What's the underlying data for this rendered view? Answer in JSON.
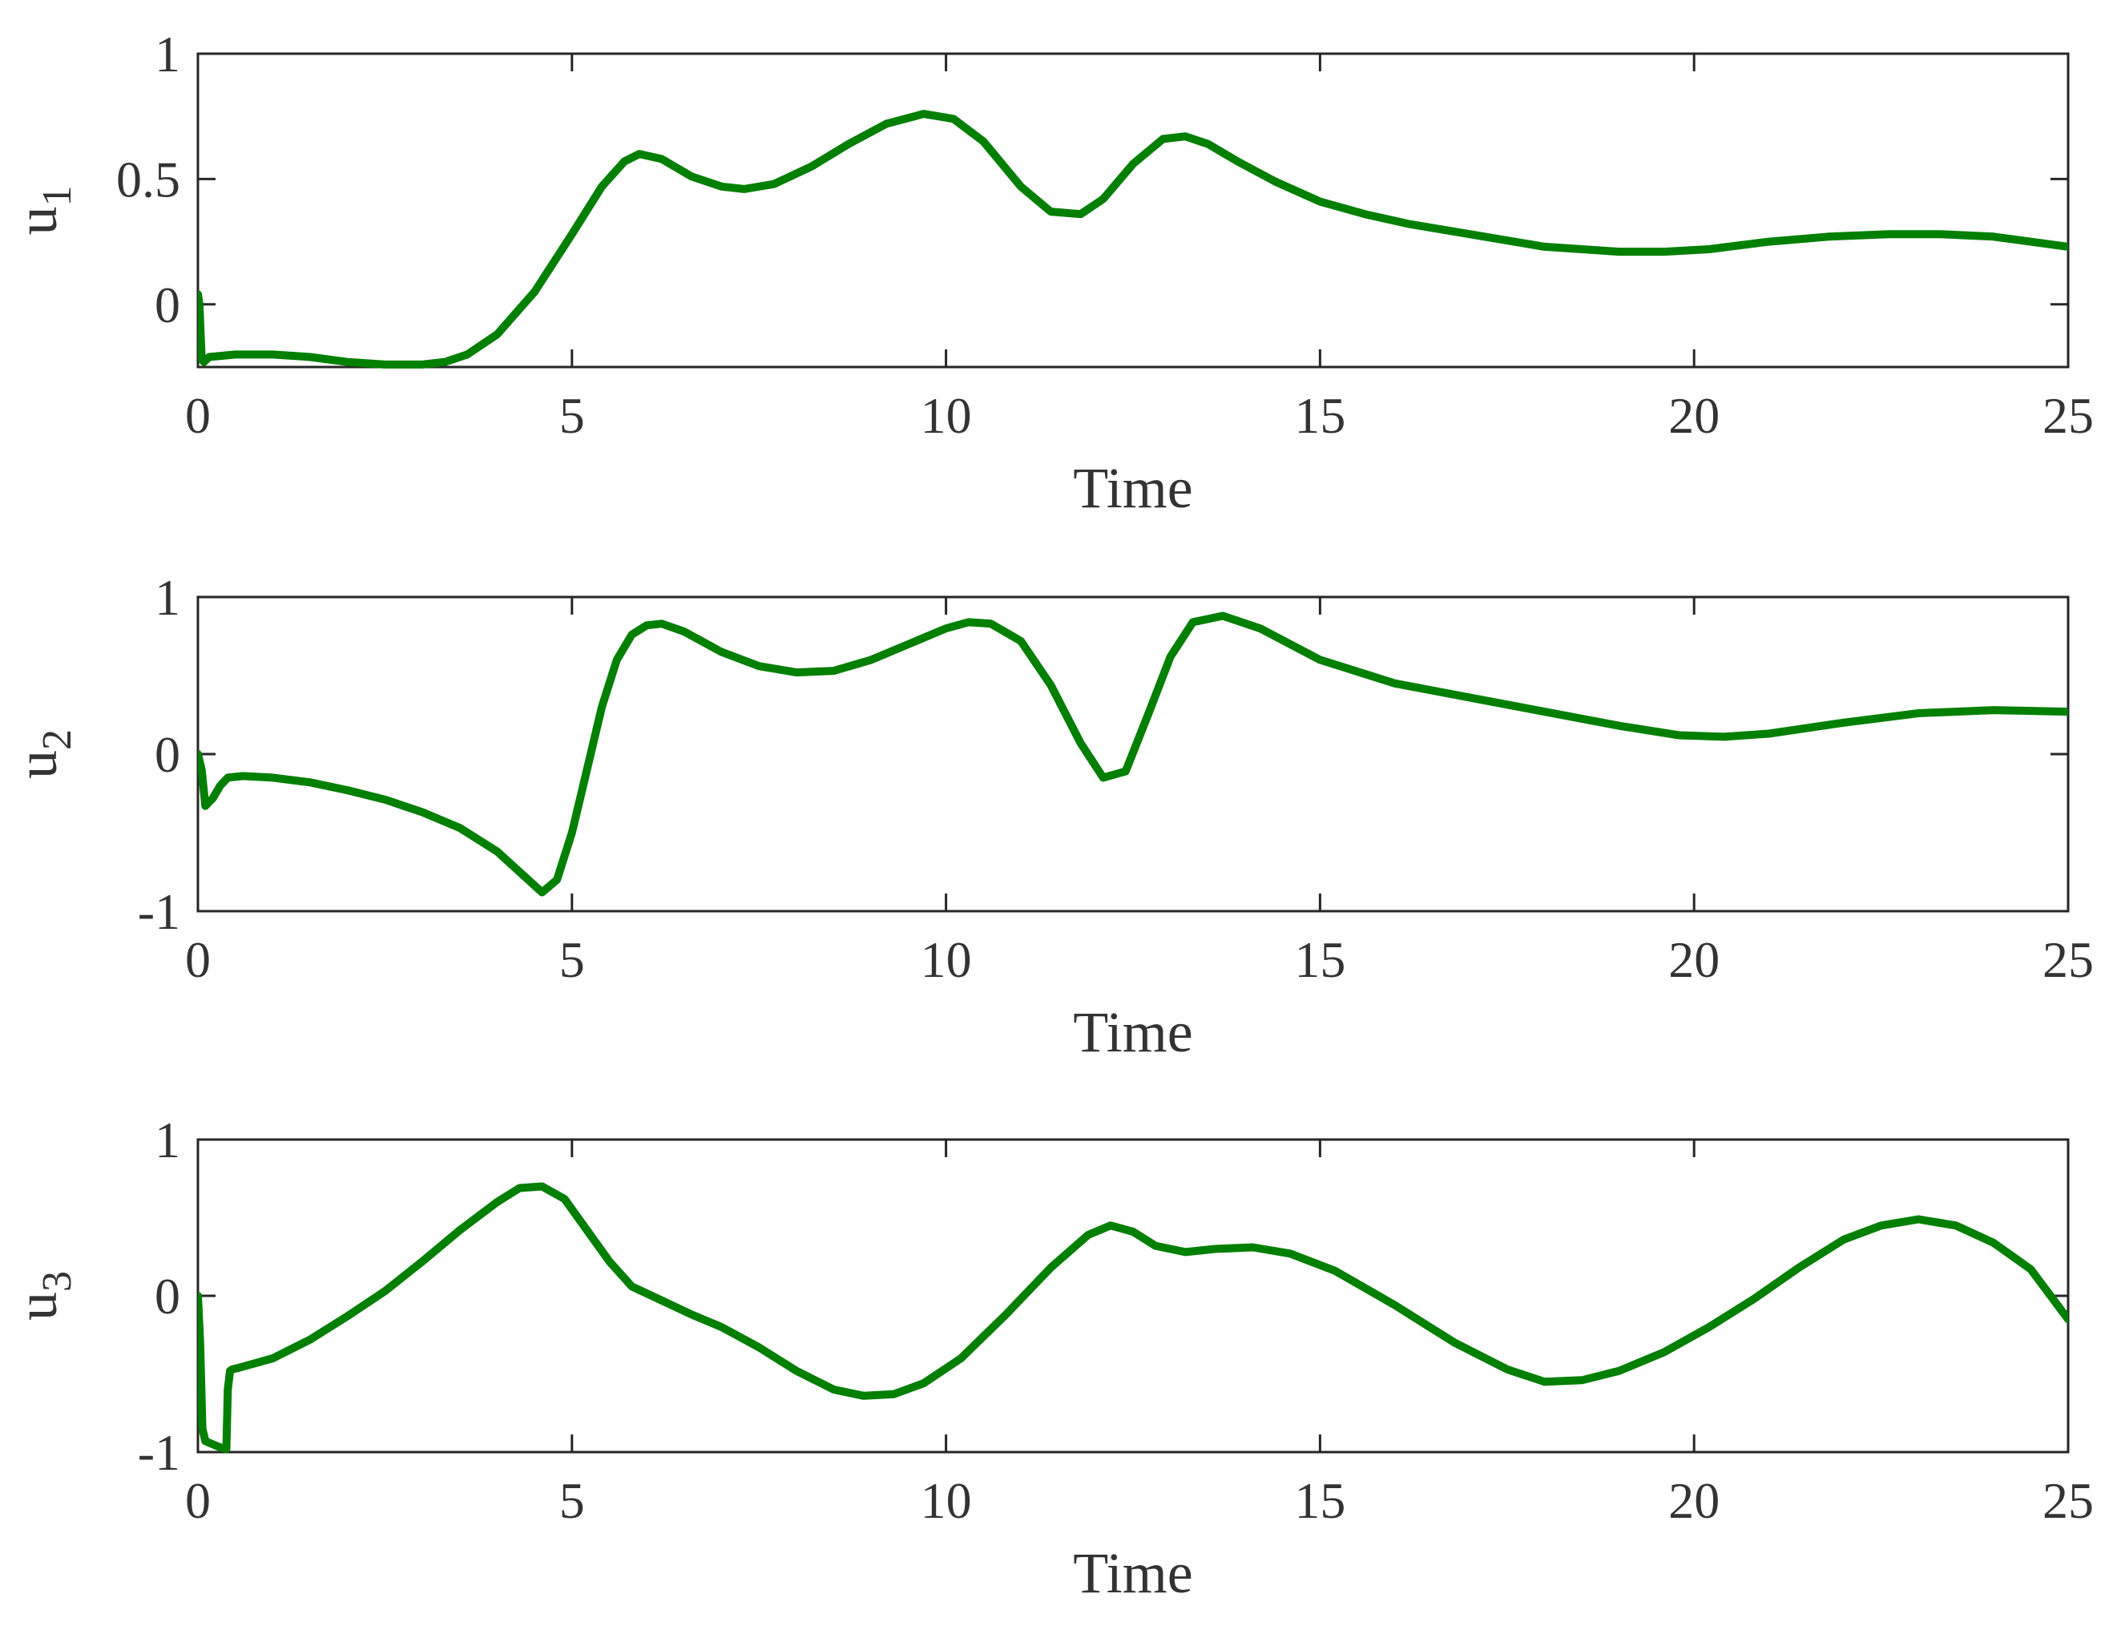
{
  "chart_data": [
    {
      "type": "line",
      "xlabel": "Time",
      "ylabel": {
        "main": "u",
        "sub": "1"
      },
      "xlim": [
        0,
        25
      ],
      "ylim": [
        -0.25,
        1
      ],
      "xticks": [
        0,
        5,
        10,
        15,
        20,
        25
      ],
      "xtick_labels": [
        "0",
        "5",
        "10",
        "15",
        "20",
        "25"
      ],
      "yticks": [
        0,
        0.5,
        1
      ],
      "ytick_labels": [
        "0",
        "0.5",
        "1"
      ],
      "grid": false,
      "series": [
        {
          "color": "#007f00",
          "x": [
            0,
            0.02,
            0.05,
            0.08,
            0.15,
            0.5,
            1.0,
            1.5,
            2.0,
            2.5,
            3.0,
            3.3,
            3.6,
            4.0,
            4.5,
            5.0,
            5.4,
            5.7,
            5.9,
            6.2,
            6.6,
            7.0,
            7.3,
            7.7,
            8.2,
            8.7,
            9.2,
            9.7,
            10.1,
            10.5,
            11.0,
            11.4,
            11.8,
            12.1,
            12.5,
            12.9,
            13.2,
            13.5,
            13.9,
            14.4,
            15.0,
            15.6,
            16.2,
            17.0,
            18.0,
            19.0,
            19.6,
            20.2,
            21.0,
            21.8,
            22.6,
            23.3,
            24.0,
            24.5,
            25.0
          ],
          "y": [
            0.04,
            0.0,
            -0.22,
            -0.23,
            -0.21,
            -0.2,
            -0.2,
            -0.21,
            -0.23,
            -0.24,
            -0.24,
            -0.23,
            -0.2,
            -0.12,
            0.05,
            0.28,
            0.47,
            0.57,
            0.6,
            0.58,
            0.51,
            0.47,
            0.46,
            0.48,
            0.55,
            0.64,
            0.72,
            0.76,
            0.74,
            0.65,
            0.47,
            0.37,
            0.36,
            0.42,
            0.56,
            0.66,
            0.67,
            0.64,
            0.57,
            0.49,
            0.41,
            0.36,
            0.32,
            0.28,
            0.23,
            0.21,
            0.21,
            0.22,
            0.25,
            0.27,
            0.28,
            0.28,
            0.27,
            0.25,
            0.23
          ]
        }
      ]
    },
    {
      "type": "line",
      "xlabel": "Time",
      "ylabel": {
        "main": "u",
        "sub": "2"
      },
      "xlim": [
        0,
        25
      ],
      "ylim": [
        -1,
        1
      ],
      "xticks": [
        0,
        5,
        10,
        15,
        20,
        25
      ],
      "xtick_labels": [
        "0",
        "5",
        "10",
        "15",
        "20",
        "25"
      ],
      "yticks": [
        -1,
        0,
        1
      ],
      "ytick_labels": [
        "-1",
        "0",
        "1"
      ],
      "grid": false,
      "series": [
        {
          "color": "#007f00",
          "x": [
            0,
            0.05,
            0.1,
            0.2,
            0.3,
            0.4,
            0.6,
            1.0,
            1.5,
            2.0,
            2.5,
            3.0,
            3.5,
            4.0,
            4.3,
            4.6,
            4.8,
            5.0,
            5.2,
            5.4,
            5.6,
            5.8,
            6.0,
            6.2,
            6.5,
            7.0,
            7.5,
            8.0,
            8.5,
            9.0,
            9.5,
            10.0,
            10.3,
            10.6,
            11.0,
            11.4,
            11.8,
            12.1,
            12.4,
            12.7,
            13.0,
            13.3,
            13.7,
            14.2,
            15.0,
            16.0,
            17.0,
            18.0,
            19.0,
            19.8,
            20.4,
            21.0,
            22.0,
            23.0,
            24.0,
            25.0
          ],
          "y": [
            0,
            -0.1,
            -0.33,
            -0.28,
            -0.2,
            -0.15,
            -0.14,
            -0.15,
            -0.18,
            -0.23,
            -0.29,
            -0.37,
            -0.47,
            -0.62,
            -0.75,
            -0.88,
            -0.8,
            -0.5,
            -0.1,
            0.3,
            0.6,
            0.76,
            0.82,
            0.83,
            0.78,
            0.65,
            0.56,
            0.52,
            0.53,
            0.6,
            0.7,
            0.8,
            0.84,
            0.83,
            0.72,
            0.44,
            0.07,
            -0.15,
            -0.11,
            0.25,
            0.62,
            0.84,
            0.88,
            0.8,
            0.6,
            0.45,
            0.36,
            0.27,
            0.18,
            0.12,
            0.11,
            0.13,
            0.2,
            0.26,
            0.28,
            0.27
          ]
        }
      ]
    },
    {
      "type": "line",
      "xlabel": "Time",
      "ylabel": {
        "main": "u",
        "sub": "3"
      },
      "xlim": [
        0,
        25
      ],
      "ylim": [
        -1,
        1
      ],
      "xticks": [
        0,
        5,
        10,
        15,
        20,
        25
      ],
      "xtick_labels": [
        "0",
        "5",
        "10",
        "15",
        "20",
        "25"
      ],
      "yticks": [
        -1,
        0,
        1
      ],
      "ytick_labels": [
        "-1",
        "0",
        "1"
      ],
      "grid": false,
      "series": [
        {
          "color": "#007f00",
          "x": [
            0,
            0.03,
            0.06,
            0.1,
            0.2,
            0.3,
            0.38,
            0.4,
            0.43,
            0.46,
            0.55,
            0.7,
            1.0,
            1.5,
            2.0,
            2.5,
            3.0,
            3.5,
            4.0,
            4.3,
            4.6,
            4.9,
            5.2,
            5.5,
            5.8,
            6.2,
            6.6,
            7.0,
            7.5,
            8.0,
            8.5,
            8.9,
            9.3,
            9.7,
            10.2,
            10.8,
            11.4,
            11.9,
            12.2,
            12.5,
            12.8,
            13.2,
            13.6,
            14.1,
            14.6,
            15.2,
            16.0,
            16.8,
            17.5,
            18.0,
            18.5,
            19.0,
            19.6,
            20.2,
            20.8,
            21.4,
            22.0,
            22.5,
            23.0,
            23.5,
            24.0,
            24.5,
            25.0
          ],
          "y": [
            0,
            -0.3,
            -0.85,
            -0.93,
            -0.95,
            -0.97,
            -0.98,
            -0.6,
            -0.48,
            -0.47,
            -0.46,
            -0.44,
            -0.4,
            -0.28,
            -0.13,
            0.03,
            0.22,
            0.42,
            0.6,
            0.69,
            0.7,
            0.62,
            0.42,
            0.22,
            0.06,
            -0.03,
            -0.12,
            -0.2,
            -0.33,
            -0.48,
            -0.6,
            -0.64,
            -0.63,
            -0.56,
            -0.4,
            -0.12,
            0.18,
            0.39,
            0.45,
            0.41,
            0.32,
            0.28,
            0.3,
            0.31,
            0.27,
            0.16,
            -0.06,
            -0.3,
            -0.47,
            -0.55,
            -0.54,
            -0.48,
            -0.36,
            -0.2,
            -0.02,
            0.18,
            0.36,
            0.45,
            0.49,
            0.45,
            0.34,
            0.17,
            -0.15
          ]
        }
      ]
    }
  ]
}
